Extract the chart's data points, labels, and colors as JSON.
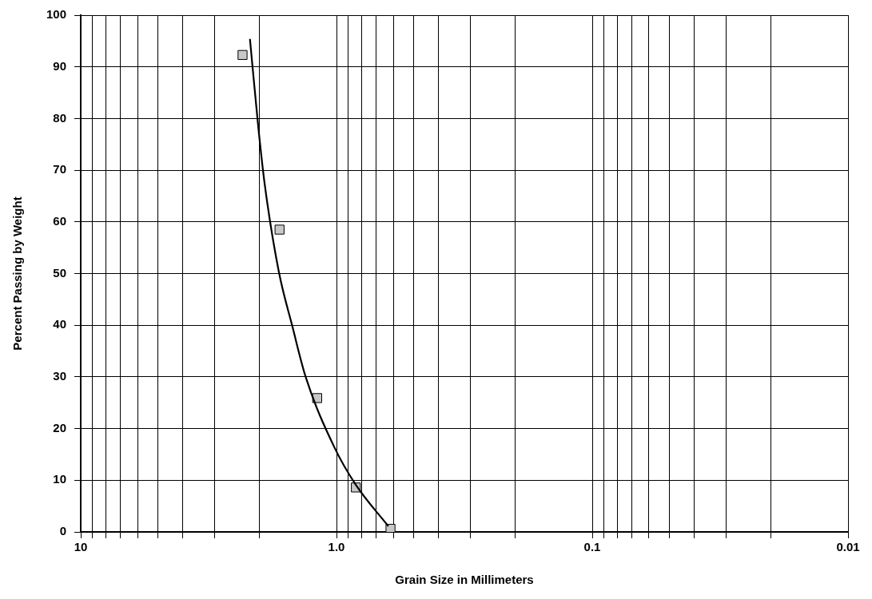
{
  "chart_data": {
    "type": "scatter",
    "xlabel": "Grain Size in Millimeters",
    "ylabel": "Percent Passing by Weight",
    "log": "x",
    "grid": true,
    "xlim": [
      10,
      0.01
    ],
    "ylim": [
      0,
      100
    ],
    "xticks": [
      10,
      {
        "value": 9,
        "label": null
      },
      {
        "value": 8,
        "label": null
      },
      {
        "value": 7,
        "label": null
      },
      {
        "value": 6,
        "label": null
      },
      {
        "value": 5,
        "label": null
      },
      {
        "value": 4,
        "label": null
      },
      {
        "value": 3,
        "label": null
      },
      {
        "value": 2,
        "label": null
      },
      {
        "value": 1,
        "label": "1.0"
      },
      {
        "value": 0.9,
        "label": null
      },
      {
        "value": 0.8,
        "label": null
      },
      {
        "value": 0.7,
        "label": null
      },
      {
        "value": 0.6,
        "label": null
      },
      {
        "value": 0.5,
        "label": null
      },
      {
        "value": 0.4,
        "label": null
      },
      {
        "value": 0.3,
        "label": null
      },
      {
        "value": 0.2,
        "label": null
      },
      0.1,
      {
        "value": 0.09,
        "label": null
      },
      {
        "value": 0.08,
        "label": null
      },
      {
        "value": 0.07,
        "label": null
      },
      {
        "value": 0.06,
        "label": null
      },
      {
        "value": 0.05,
        "label": null
      },
      {
        "value": 0.04,
        "label": null
      },
      {
        "value": 0.03,
        "label": null
      },
      {
        "value": 0.02,
        "label": null
      },
      0.01
    ],
    "yticks": [
      0,
      10,
      20,
      30,
      40,
      50,
      60,
      70,
      80,
      90,
      100
    ],
    "series": [
      {
        "marker": "square",
        "color": "#c8c8c8",
        "x": [
          2.33,
          1.67,
          1.19,
          0.84,
          0.615
        ],
        "values": [
          92.3,
          58.5,
          25.9,
          8.6,
          0.6
        ]
      },
      {
        "type": "line",
        "marker": "none",
        "color": "#000000",
        "x": [
          2.18,
          2.03,
          1.91,
          1.68,
          1.49,
          1.32,
          1.02,
          0.84,
          0.627
        ],
        "values": [
          95.4,
          79.2,
          67.4,
          50.3,
          39.9,
          30.0,
          16.4,
          9.1,
          1.1
        ]
      }
    ]
  }
}
